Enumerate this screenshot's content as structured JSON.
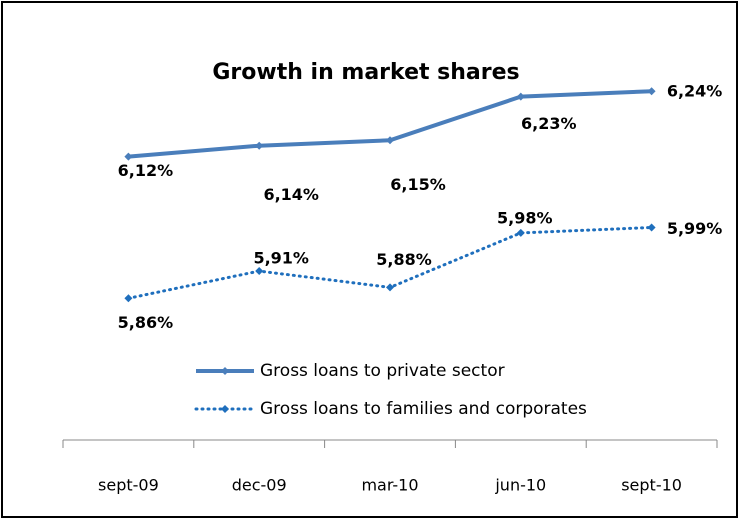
{
  "chart_data": {
    "type": "line",
    "title": "Growth in market shares",
    "categories": [
      "sept-09",
      "dec-09",
      "mar-10",
      "jun-10",
      "sept-10"
    ],
    "series": [
      {
        "name": "Gross loans to private sector",
        "color": "#4a7ebb",
        "style": "solid",
        "values": [
          6.12,
          6.14,
          6.15,
          6.23,
          6.24
        ],
        "value_labels": [
          "6,12%",
          "6,14%",
          "6,15%",
          "6,23%",
          "6,24%"
        ]
      },
      {
        "name": "Gross loans to families and corporates",
        "color": "#1f6fbd",
        "style": "dotted",
        "values": [
          5.86,
          5.91,
          5.88,
          5.98,
          5.99
        ],
        "value_labels": [
          "5,86%",
          "5,91%",
          "5,88%",
          "5,98%",
          "5,99%"
        ]
      }
    ],
    "ylim": [
      5.6,
      6.4
    ],
    "grid": false
  }
}
